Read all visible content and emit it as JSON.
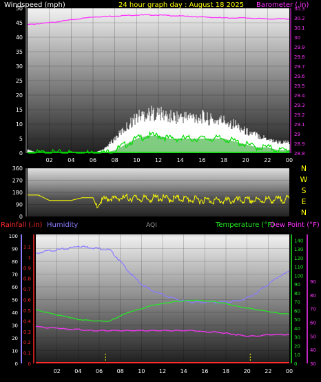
{
  "header": {
    "left_title": "Windspeed (mph)",
    "center_title": "24 hour graph day : August 18 2025",
    "right_title": "Barometer (.in)"
  },
  "colors": {
    "windspeed_title": "#ffffff",
    "center_title": "#ffff00",
    "barometer": "#ff33ff",
    "wind_gust": "#ffffff",
    "wind_avg": "#00dd00",
    "wind_fill": "#8ee88e",
    "direction": "#ffff00",
    "rain": "#ff2a2a",
    "humidity": "#8a7cff",
    "aqi": "#999999",
    "temperature": "#22ee22",
    "dewpoint": "#ff33ff",
    "time_marker": "#ffff00"
  },
  "direction_labels": [
    "N",
    "W",
    "S",
    "E",
    "N"
  ],
  "lower_titles": {
    "rainfall": "Rainfall (.in)",
    "humidity": "Humidity",
    "aqi": "AQI",
    "temperature": "Temperature (°F)",
    "dewpoint": "Dew Point (°F)"
  },
  "chart_data": [
    {
      "type": "line",
      "title": "24 hour graph day : August 18 2025",
      "x_ticks": [
        "02",
        "04",
        "06",
        "08",
        "10",
        "12",
        "14",
        "16",
        "18",
        "20",
        "22",
        "00"
      ],
      "x_range_hours": [
        0,
        24
      ],
      "windspeed_axis": {
        "label": "Windspeed (mph)",
        "range": [
          0,
          50
        ],
        "ticks": [
          0,
          5,
          10,
          15,
          20,
          25,
          30,
          35,
          40,
          45,
          50
        ]
      },
      "barometer_axis": {
        "label": "Barometer (.in)",
        "range": [
          28.8,
          30.3
        ],
        "ticks": [
          "28.8",
          "28.9",
          "29",
          "29.1",
          "29.2",
          "29.3",
          "29.4",
          "29.5",
          "29.6",
          "29.7",
          "29.8",
          "29.9",
          "30",
          "30.1",
          "30.2",
          "30.3"
        ]
      },
      "series": [
        {
          "name": "Barometer (.in)",
          "x": [
            0,
            2,
            4,
            6,
            8,
            10,
            12,
            14,
            16,
            18,
            20,
            22,
            24
          ],
          "values": [
            30.13,
            30.15,
            30.18,
            30.21,
            30.22,
            30.23,
            30.23,
            30.22,
            30.21,
            30.2,
            30.2,
            30.19,
            30.19
          ]
        },
        {
          "x": [
            0,
            1,
            2,
            3,
            4,
            5,
            6,
            7,
            8,
            9,
            10,
            11,
            12,
            13,
            14,
            15,
            16,
            17,
            18,
            19,
            20,
            21,
            22,
            23,
            24
          ],
          "values": [
            1,
            0,
            0,
            0,
            0,
            0,
            0,
            1,
            4,
            7,
            10,
            11,
            11,
            10,
            10,
            10,
            10,
            9,
            9,
            8,
            6,
            5,
            4,
            3,
            3
          ]
        },
        {
          "x": [
            0,
            1,
            2,
            3,
            4,
            5,
            6,
            7,
            8,
            9,
            10,
            11,
            12,
            13,
            14,
            15,
            16,
            17,
            18,
            19,
            20,
            21,
            22,
            23,
            24
          ],
          "values": [
            0,
            0,
            0,
            0,
            0,
            0,
            0,
            0,
            1,
            3,
            5,
            6,
            6,
            5,
            5,
            5,
            5,
            5,
            5,
            4,
            3,
            2,
            2,
            1,
            1
          ]
        }
      ]
    },
    {
      "type": "line",
      "y_range": [
        0,
        360
      ],
      "y_ticks": [
        0,
        90,
        180,
        270,
        360
      ],
      "series": [
        {
          "x": [
            0,
            1,
            2,
            3,
            4,
            5,
            6,
            6.3,
            7,
            8,
            9,
            10,
            11,
            12,
            13,
            14,
            15,
            16,
            17,
            18,
            19,
            20,
            21,
            22,
            23,
            24
          ],
          "values": [
            160,
            160,
            120,
            120,
            120,
            140,
            140,
            80,
            130,
            135,
            140,
            135,
            130,
            140,
            130,
            135,
            125,
            125,
            120,
            115,
            120,
            120,
            120,
            125,
            125,
            130
          ]
        }
      ]
    },
    {
      "type": "line",
      "x_ticks": [
        "02",
        "04",
        "06",
        "08",
        "10",
        "12",
        "14",
        "16",
        "18",
        "20",
        "22",
        "00"
      ],
      "x_range_hours": [
        0,
        24
      ],
      "humidity_axis": {
        "label": "Humidity",
        "range": [
          0,
          100
        ],
        "ticks": [
          0,
          10,
          20,
          30,
          40,
          50,
          60,
          70,
          80,
          90,
          100
        ]
      },
      "rain_axis": {
        "label": "Rainfall (.in)",
        "range": [
          0,
          1.2
        ],
        "ticks": [
          "0",
          "0.1",
          "0.2",
          "0.3",
          "0.4",
          "0.5",
          "0.6",
          "0.7",
          "0.8",
          "0.9",
          "1",
          "1.1"
        ]
      },
      "temperature_axis": {
        "label": "Temperature (°F)",
        "range": [
          0,
          145
        ],
        "ticks": [
          0,
          10,
          20,
          30,
          40,
          50,
          60,
          70,
          80,
          90,
          100,
          110,
          120,
          130,
          140
        ]
      },
      "dewpoint_axis": {
        "label": "Dew Point (°F)",
        "range": [
          30,
          100
        ],
        "ticks": [
          30,
          40,
          50,
          60,
          70,
          80,
          90
        ]
      },
      "series": [
        {
          "name": "Humidity",
          "x": [
            0,
            1,
            2,
            3,
            4,
            5,
            6,
            7,
            8,
            9,
            10,
            11,
            12,
            13,
            14,
            15,
            16,
            17,
            18,
            19,
            20,
            21,
            22,
            23,
            24
          ],
          "values": [
            86,
            88,
            89,
            90,
            92,
            91,
            90,
            89,
            80,
            70,
            62,
            57,
            54,
            51,
            49,
            48,
            48,
            48,
            48,
            49,
            51,
            56,
            62,
            68,
            72
          ]
        },
        {
          "name": "Temperature (°F)",
          "x": [
            0,
            1,
            2,
            3,
            4,
            5,
            6,
            7,
            8,
            9,
            10,
            11,
            12,
            13,
            14,
            15,
            16,
            17,
            18,
            19,
            20,
            21,
            22,
            23,
            24
          ],
          "values": [
            61,
            58,
            55,
            53,
            50,
            49,
            48,
            48,
            54,
            59,
            62,
            66,
            68,
            70,
            71,
            72,
            71,
            70,
            68,
            65,
            63,
            61,
            59,
            57,
            56
          ]
        },
        {
          "name": "Dew Point (°F)",
          "x": [
            0,
            1,
            2,
            3,
            4,
            5,
            6,
            7,
            8,
            9,
            10,
            11,
            12,
            13,
            14,
            15,
            16,
            17,
            18,
            19,
            20,
            21,
            22,
            23,
            24
          ],
          "values": [
            57,
            56,
            56,
            55,
            55,
            54,
            54,
            54,
            54,
            54,
            54,
            54,
            54,
            54,
            54,
            54,
            53,
            53,
            52,
            51,
            50,
            50,
            51,
            51,
            51
          ]
        },
        {
          "name": "Rainfall (.in)",
          "x": [
            0,
            24
          ],
          "values": [
            0,
            0
          ]
        }
      ],
      "time_markers_hours": [
        6.6,
        20.3
      ]
    }
  ]
}
